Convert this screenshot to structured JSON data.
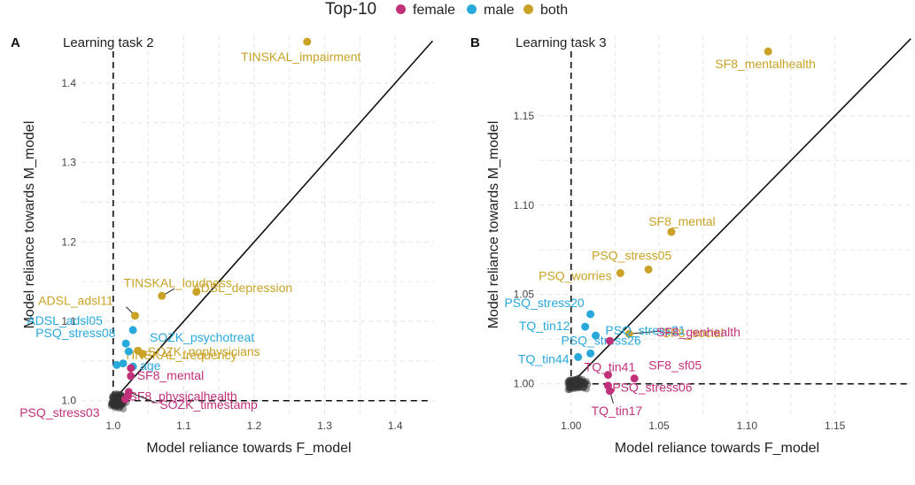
{
  "legend": {
    "title": "Top-10",
    "items": [
      {
        "label": "female",
        "color": "#c0317a"
      },
      {
        "label": "male",
        "color": "#29a8dc"
      },
      {
        "label": "both",
        "color": "#c9a227"
      }
    ]
  },
  "colors": {
    "female": "#c0317a",
    "male": "#29a8dc",
    "both": "#c9a227",
    "other": "#333333",
    "grid": "#e2e2e2"
  },
  "chart_data": [
    {
      "panel": "A",
      "type": "scatter",
      "title": "Learning task 2",
      "xlabel": "Model reliance towards F_model",
      "ylabel": "Model reliance towards M_model",
      "xlim": [
        0.955,
        1.455
      ],
      "ylim": [
        0.983,
        1.46
      ],
      "xticks": [
        1.0,
        1.1,
        1.2,
        1.3,
        1.4
      ],
      "xtick_labels": [
        "1.0",
        "1.1",
        "1.2",
        "1.3",
        "1.4"
      ],
      "yticks": [
        1.0,
        1.1,
        1.2,
        1.3,
        1.4
      ],
      "ytick_labels": [
        "1.0",
        "1.1",
        "1.2",
        "1.3",
        "1.4"
      ],
      "reference_lines": {
        "vertical_x": 1.0,
        "horizontal_y": 1.0,
        "diagonal": true
      },
      "points": [
        {
          "label": "TINSKAL_impairment",
          "group": "both",
          "x": 1.275,
          "y": 1.452
        },
        {
          "label": "TINSKAL_loudness",
          "group": "both",
          "x": 1.069,
          "y": 1.132
        },
        {
          "label": "ADSL_depression",
          "group": "both",
          "x": 1.118,
          "y": 1.137
        },
        {
          "label": "ADSL_adsl11",
          "group": "both",
          "x": 1.031,
          "y": 1.107
        },
        {
          "label": "TINSKAL_frequency",
          "group": "both",
          "x": 1.035,
          "y": 1.063
        },
        {
          "label": "SOZK_nophysicians",
          "group": "both",
          "x": 1.042,
          "y": 1.059
        },
        {
          "label": "SOZK_psychotreat",
          "group": "male",
          "x": 1.028,
          "y": 1.089
        },
        {
          "label": "ADSL_adsl05",
          "group": "male",
          "x": 1.018,
          "y": 1.072
        },
        {
          "label": "PSQ_stress08",
          "group": "male",
          "x": 1.022,
          "y": 1.062
        },
        {
          "label": "age",
          "group": "male",
          "x": 1.028,
          "y": 1.043
        },
        {
          "label": "",
          "group": "male",
          "x": 1.005,
          "y": 1.045
        },
        {
          "label": "",
          "group": "male",
          "x": 1.014,
          "y": 1.047
        },
        {
          "label": "SF8_mental",
          "group": "female",
          "x": 1.025,
          "y": 1.031
        },
        {
          "label": "SF8_physicalhealth",
          "group": "female",
          "x": 1.021,
          "y": 1.006
        },
        {
          "label": "PSQ_stress03",
          "group": "female",
          "x": 1.017,
          "y": 1.002
        },
        {
          "label": "SOZK_timestamp",
          "group": "female",
          "x": 1.022,
          "y": 1.011
        },
        {
          "label": "",
          "group": "female",
          "x": 1.025,
          "y": 1.041
        }
      ],
      "cluster": {
        "group": "other",
        "center": [
          1.0,
          1.0
        ],
        "spread": [
          0.016,
          0.012
        ],
        "count": 120
      }
    },
    {
      "panel": "B",
      "type": "scatter",
      "title": "Learning task 3",
      "xlabel": "Model reliance towards F_model",
      "ylabel": "Model reliance towards M_model",
      "xlim": [
        0.982,
        1.194
      ],
      "ylim": [
        0.983,
        1.195
      ],
      "xticks": [
        1.0,
        1.05,
        1.1,
        1.15
      ],
      "xtick_labels": [
        "1.00",
        "1.05",
        "1.10",
        "1.15"
      ],
      "yticks": [
        1.0,
        1.05,
        1.1,
        1.15
      ],
      "ytick_labels": [
        "1.00",
        "1.05",
        "1.10",
        "1.15"
      ],
      "reference_lines": {
        "vertical_x": 1.0,
        "horizontal_y": 1.0,
        "diagonal": true
      },
      "points": [
        {
          "label": "SF8_mentalhealth",
          "group": "both",
          "x": 1.112,
          "y": 1.186
        },
        {
          "label": "SF8_mental",
          "group": "both",
          "x": 1.057,
          "y": 1.085
        },
        {
          "label": "PSQ_stress05",
          "group": "both",
          "x": 1.044,
          "y": 1.064
        },
        {
          "label": "PSQ_worries",
          "group": "both",
          "x": 1.028,
          "y": 1.062
        },
        {
          "label": "SF8_social",
          "group": "both",
          "x": 1.033,
          "y": 1.028
        },
        {
          "label": "PSQ_stress20",
          "group": "male",
          "x": 1.011,
          "y": 1.039
        },
        {
          "label": "TQ_tin12",
          "group": "male",
          "x": 1.008,
          "y": 1.032
        },
        {
          "label": "PSQ_stress21",
          "group": "male",
          "x": 1.014,
          "y": 1.027
        },
        {
          "label": "PSQ_stress26",
          "group": "male",
          "x": 1.011,
          "y": 1.017
        },
        {
          "label": "TQ_tin44",
          "group": "male",
          "x": 1.004,
          "y": 1.015
        },
        {
          "label": "SF8_genhealth",
          "group": "female",
          "x": 1.022,
          "y": 1.024
        },
        {
          "label": "TQ_tin41",
          "group": "female",
          "x": 1.021,
          "y": 1.005
        },
        {
          "label": "SF8_sf05",
          "group": "female",
          "x": 1.036,
          "y": 1.003
        },
        {
          "label": "PSQ_stress06",
          "group": "female",
          "x": 1.021,
          "y": 0.999
        },
        {
          "label": "TQ_tin17",
          "group": "female",
          "x": 1.022,
          "y": 0.996
        }
      ],
      "cluster": {
        "group": "other",
        "center": [
          1.0,
          1.0
        ],
        "spread": [
          0.008,
          0.004
        ],
        "count": 140
      }
    }
  ],
  "panel_labels": [
    "A",
    "B"
  ]
}
